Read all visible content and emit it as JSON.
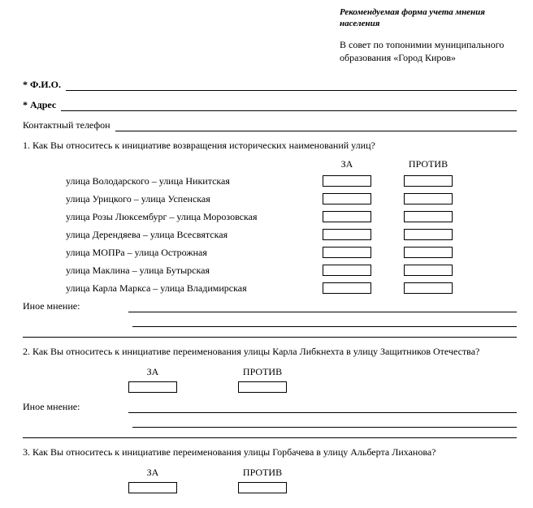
{
  "header": {
    "italic_line1": "Рекомендуемая форма учета мнения",
    "italic_line2": "населения",
    "plain_line1": "В совет по топонимии муниципального",
    "plain_line2": "образования «Город Киров»"
  },
  "fields": {
    "fio_label": "* Ф.И.О.",
    "address_label": "* Адрес",
    "phone_label": "Контактный телефон"
  },
  "q1": {
    "text": "1. Как Вы относитесь к инициативе возвращения исторических наименований улиц?",
    "za": "ЗА",
    "protiv": "ПРОТИВ",
    "streets": [
      "улица Володарского – улица Никитская",
      "улица Урицкого – улица Успенская",
      "улица Розы Люксембург – улица Морозовская",
      "улица Дерендяева – улица Всесвятская",
      "улица МОПРа – улица Острожная",
      "улица Маклина – улица Бутырская",
      "улица Карла Маркса – улица Владимирская"
    ],
    "other": "Иное мнение:"
  },
  "q2": {
    "text": "2. Как Вы относитесь к инициативе переименования улицы Карла Либкнехта в улицу Защитников Отечества?",
    "za": "ЗА",
    "protiv": "ПРОТИВ",
    "other": "Иное мнение:"
  },
  "q3": {
    "text": "3. Как Вы относитесь к инициативе переименования улицы Горбачева в улицу Альберта Лиханова?",
    "za": "ЗА",
    "protiv": "ПРОТИВ"
  }
}
